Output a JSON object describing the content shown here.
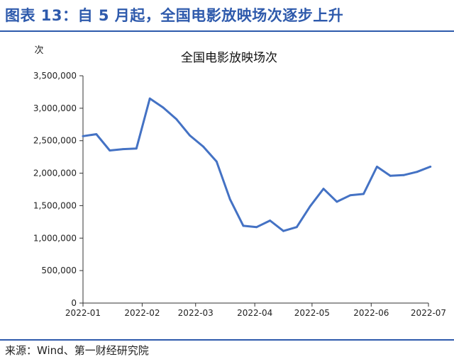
{
  "figure": {
    "title": "图表 13：自 5 月起，全国电影放映场次逐步上升",
    "source": "来源：Wind、第一财经研究院"
  },
  "colors": {
    "accent": "#2E5AAC",
    "line": "#4472C4"
  },
  "chart_data": {
    "type": "line",
    "title": "全国电影放映场次",
    "ylabel": "次",
    "xlabel": "",
    "ylim": [
      0,
      3500000
    ],
    "yticks": [
      0,
      500000,
      1000000,
      1500000,
      2000000,
      2500000,
      3000000,
      3500000
    ],
    "ytick_labels": [
      "0",
      "500,000",
      "1,000,000",
      "1,500,000",
      "2,000,000",
      "2,500,000",
      "3,000,000",
      "3,500,000"
    ],
    "xticks": [
      "2022-01",
      "2022-02",
      "2022-03",
      "2022-04",
      "2022-05",
      "2022-06",
      "2022-07"
    ],
    "grid": false,
    "series": [
      {
        "name": "",
        "x": [
          "2022-01-01",
          "2022-01-08",
          "2022-01-15",
          "2022-01-22",
          "2022-01-29",
          "2022-02-05",
          "2022-02-12",
          "2022-02-19",
          "2022-02-26",
          "2022-03-05",
          "2022-03-12",
          "2022-03-19",
          "2022-03-26",
          "2022-04-02",
          "2022-04-09",
          "2022-04-16",
          "2022-04-23",
          "2022-04-30",
          "2022-05-07",
          "2022-05-14",
          "2022-05-21",
          "2022-05-28",
          "2022-06-04",
          "2022-06-11",
          "2022-06-18",
          "2022-06-25",
          "2022-07-02"
        ],
        "values": [
          2570000,
          2600000,
          2350000,
          2370000,
          2380000,
          3150000,
          3010000,
          2830000,
          2580000,
          2410000,
          2180000,
          1600000,
          1190000,
          1170000,
          1270000,
          1110000,
          1170000,
          1490000,
          1760000,
          1560000,
          1660000,
          1680000,
          2100000,
          1960000,
          1970000,
          2020000,
          2100000
        ]
      }
    ]
  }
}
